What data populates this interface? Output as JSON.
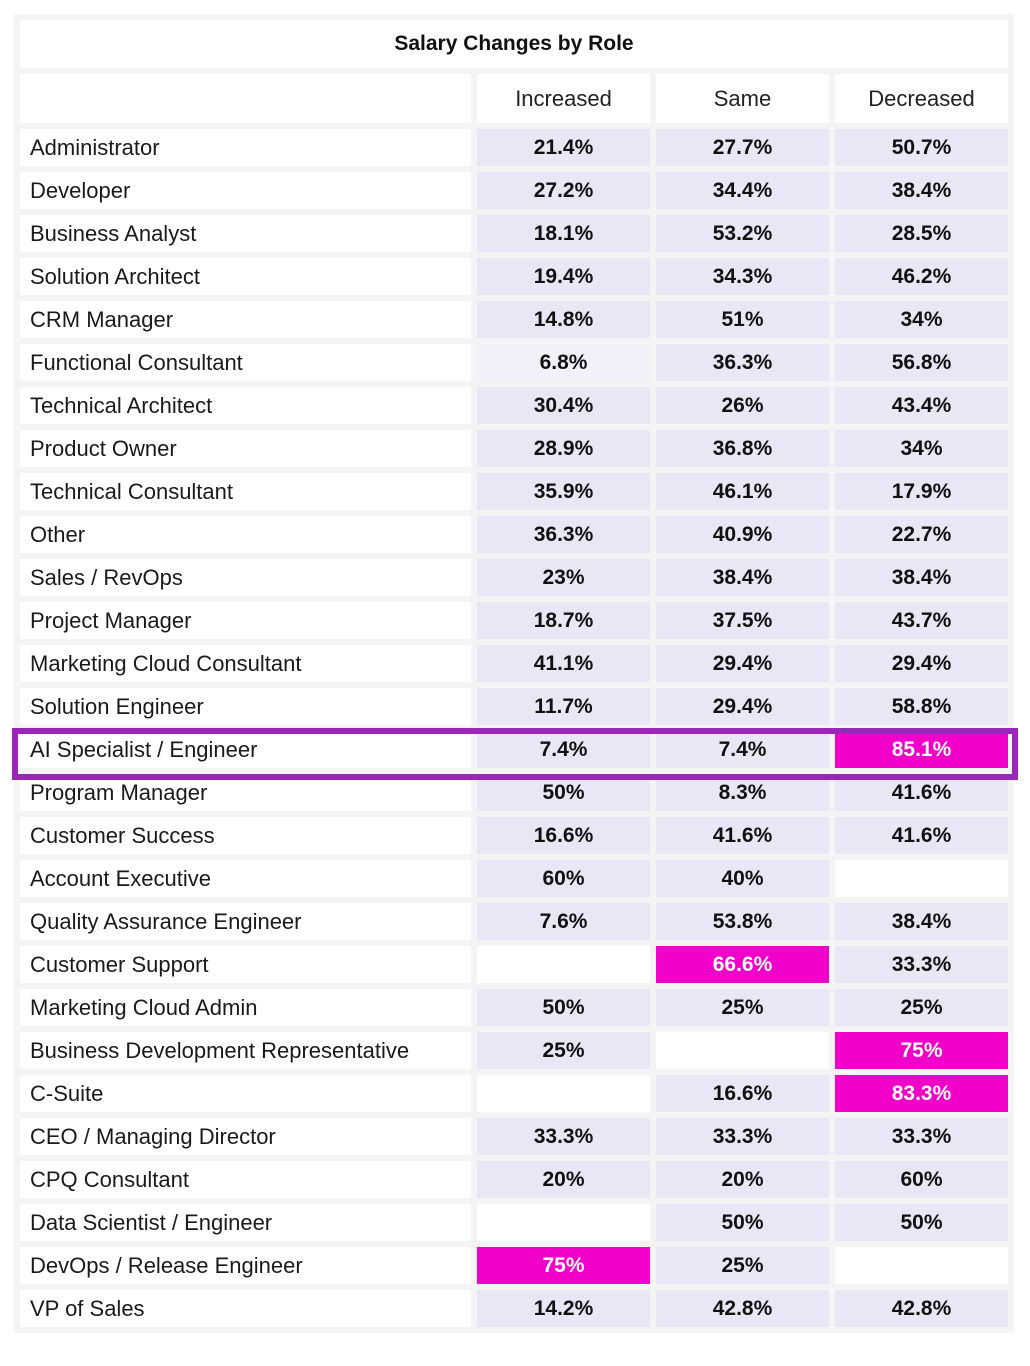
{
  "chart_data": {
    "type": "table",
    "title": "Salary Changes by Role",
    "columns": [
      "Increased",
      "Same",
      "Decreased"
    ],
    "highlight_row": "AI Specialist / Engineer",
    "colors": {
      "cell": "#ebe6f5",
      "highlight": "#f000c8",
      "outline": "#9b27b8"
    },
    "rows": [
      {
        "role": "Administrator",
        "values": [
          "21.4%",
          "27.7%",
          "50.7%"
        ]
      },
      {
        "role": "Developer",
        "values": [
          "27.2%",
          "34.4%",
          "38.4%"
        ]
      },
      {
        "role": "Business Analyst",
        "values": [
          "18.1%",
          "53.2%",
          "28.5%"
        ]
      },
      {
        "role": "Solution Architect",
        "values": [
          "19.4%",
          "34.3%",
          "46.2%"
        ]
      },
      {
        "role": "CRM Manager",
        "values": [
          "14.8%",
          "51%",
          "34%"
        ]
      },
      {
        "role": "Functional Consultant",
        "values": [
          "6.8%",
          "36.3%",
          "56.8%"
        ]
      },
      {
        "role": "Technical Architect",
        "values": [
          "30.4%",
          "26%",
          "43.4%"
        ]
      },
      {
        "role": "Product Owner",
        "values": [
          "28.9%",
          "36.8%",
          "34%"
        ]
      },
      {
        "role": "Technical Consultant",
        "values": [
          "35.9%",
          "46.1%",
          "17.9%"
        ]
      },
      {
        "role": "Other",
        "values": [
          "36.3%",
          "40.9%",
          "22.7%"
        ]
      },
      {
        "role": "Sales / RevOps",
        "values": [
          "23%",
          "38.4%",
          "38.4%"
        ]
      },
      {
        "role": "Project Manager",
        "values": [
          "18.7%",
          "37.5%",
          "43.7%"
        ]
      },
      {
        "role": "Marketing Cloud Consultant",
        "values": [
          "41.1%",
          "29.4%",
          "29.4%"
        ]
      },
      {
        "role": "Solution Engineer",
        "values": [
          "11.7%",
          "29.4%",
          "58.8%"
        ]
      },
      {
        "role": "AI Specialist / Engineer",
        "values": [
          "7.4%",
          "7.4%",
          "85.1%"
        ]
      },
      {
        "role": "Program Manager",
        "values": [
          "50%",
          "8.3%",
          "41.6%"
        ]
      },
      {
        "role": "Customer Success",
        "values": [
          "16.6%",
          "41.6%",
          "41.6%"
        ]
      },
      {
        "role": "Account Executive",
        "values": [
          "60%",
          "40%",
          ""
        ]
      },
      {
        "role": "Quality Assurance Engineer",
        "values": [
          "7.6%",
          "53.8%",
          "38.4%"
        ]
      },
      {
        "role": "Customer Support",
        "values": [
          "",
          "66.6%",
          "33.3%"
        ]
      },
      {
        "role": "Marketing Cloud Admin",
        "values": [
          "50%",
          "25%",
          "25%"
        ]
      },
      {
        "role": "Business Development Representative",
        "values": [
          "25%",
          "",
          "75%"
        ]
      },
      {
        "role": "C-Suite",
        "values": [
          "",
          "16.6%",
          "83.3%"
        ]
      },
      {
        "role": "CEO / Managing Director",
        "values": [
          "33.3%",
          "33.3%",
          "33.3%"
        ]
      },
      {
        "role": "CPQ Consultant",
        "values": [
          "20%",
          "20%",
          "60%"
        ]
      },
      {
        "role": "Data Scientist / Engineer",
        "values": [
          "",
          "50%",
          "50%"
        ]
      },
      {
        "role": "DevOps / Release Engineer",
        "values": [
          "75%",
          "25%",
          ""
        ]
      },
      {
        "role": "VP of Sales",
        "values": [
          "14.2%",
          "42.8%",
          "42.8%"
        ]
      }
    ]
  }
}
